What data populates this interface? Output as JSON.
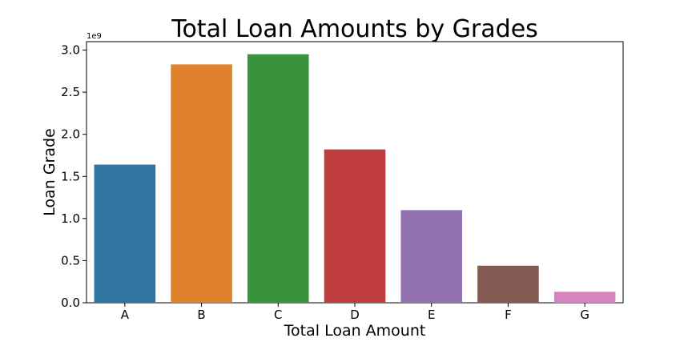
{
  "chart_data": {
    "type": "bar",
    "title": "Total Loan Amounts by Grades",
    "xlabel": "Total Loan Amount",
    "ylabel": "Loan Grade",
    "y_multiplier": "1e9",
    "categories": [
      "A",
      "B",
      "C",
      "D",
      "E",
      "F",
      "G"
    ],
    "values": [
      1.64,
      2.83,
      2.95,
      1.82,
      1.1,
      0.44,
      0.13
    ],
    "colors": [
      "#3274a1",
      "#e1812c",
      "#3a923a",
      "#c03d3e",
      "#9372b2",
      "#845b53",
      "#d684bd"
    ],
    "ylim": [
      0,
      3.1
    ],
    "yticks": [
      0.0,
      0.5,
      1.0,
      1.5,
      2.0,
      2.5,
      3.0
    ],
    "ytick_labels": [
      "0.0",
      "0.5",
      "1.0",
      "1.5",
      "2.0",
      "2.5",
      "3.0"
    ],
    "grid": false,
    "legend": "none"
  }
}
